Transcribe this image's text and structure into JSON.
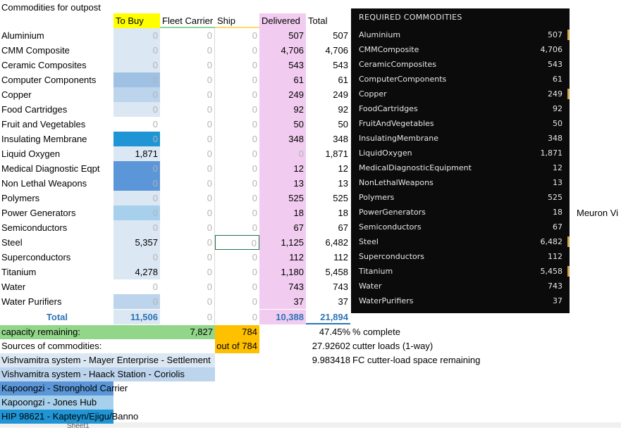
{
  "sheet": {
    "title": "Commodities for outpost",
    "headers": {
      "to_buy": "To Buy",
      "fleet_carrier": "Fleet Carrier",
      "ship": "Ship",
      "delivered": "Delivered",
      "total": "Total"
    },
    "rows": [
      {
        "name": "Aluminium",
        "to_buy": "0",
        "fc": "0",
        "ship": "0",
        "delivered": "507",
        "total": "507",
        "buy_color": "#dbe7f3"
      },
      {
        "name": "CMM Composite",
        "to_buy": "0",
        "fc": "0",
        "ship": "0",
        "delivered": "4,706",
        "total": "4,706",
        "buy_color": "#dbe7f3"
      },
      {
        "name": "Ceramic Composites",
        "to_buy": "0",
        "fc": "0",
        "ship": "0",
        "delivered": "543",
        "total": "543",
        "buy_color": "#dbe7f3"
      },
      {
        "name": "Computer Components",
        "to_buy": "0",
        "fc": "0",
        "ship": "0",
        "delivered": "61",
        "total": "61",
        "buy_color": "#9fc1e4"
      },
      {
        "name": "Copper",
        "to_buy": "0",
        "fc": "0",
        "ship": "0",
        "delivered": "249",
        "total": "249",
        "buy_color": "#bcd4ec"
      },
      {
        "name": "Food Cartridges",
        "to_buy": "0",
        "fc": "0",
        "ship": "0",
        "delivered": "92",
        "total": "92",
        "buy_color": "#dbe7f3"
      },
      {
        "name": "Fruit and Vegetables",
        "to_buy": "0",
        "fc": "0",
        "ship": "0",
        "delivered": "50",
        "total": "50",
        "buy_color": "#ffffff"
      },
      {
        "name": "Insulating Membrane",
        "to_buy": "0",
        "fc": "0",
        "ship": "0",
        "delivered": "348",
        "total": "348",
        "buy_color": "#1f95d6"
      },
      {
        "name": "Liquid Oxygen",
        "to_buy": "1,871",
        "fc": "0",
        "ship": "0",
        "delivered": "0",
        "total": "1,871",
        "buy_color": "#dbe7f3"
      },
      {
        "name": "Medical Diagnostic Eqpt",
        "to_buy": "0",
        "fc": "0",
        "ship": "0",
        "delivered": "12",
        "total": "12",
        "buy_color": "#5b96d8"
      },
      {
        "name": "Non Lethal Weapons",
        "to_buy": "0",
        "fc": "0",
        "ship": "0",
        "delivered": "13",
        "total": "13",
        "buy_color": "#5b96d8"
      },
      {
        "name": "Polymers",
        "to_buy": "0",
        "fc": "0",
        "ship": "0",
        "delivered": "525",
        "total": "525",
        "buy_color": "#dbe7f3"
      },
      {
        "name": "Power Generators",
        "to_buy": "0",
        "fc": "0",
        "ship": "0",
        "delivered": "18",
        "total": "18",
        "buy_color": "#a7d0ec"
      },
      {
        "name": "Semiconductors",
        "to_buy": "0",
        "fc": "0",
        "ship": "0",
        "delivered": "67",
        "total": "67",
        "buy_color": "#dbe7f3"
      },
      {
        "name": "Steel",
        "to_buy": "5,357",
        "fc": "0",
        "ship": "0",
        "delivered": "1,125",
        "total": "6,482",
        "buy_color": "#dbe7f3"
      },
      {
        "name": "Superconductors",
        "to_buy": "0",
        "fc": "0",
        "ship": "0",
        "delivered": "112",
        "total": "112",
        "buy_color": "#dbe7f3"
      },
      {
        "name": "Titanium",
        "to_buy": "4,278",
        "fc": "0",
        "ship": "0",
        "delivered": "1,180",
        "total": "5,458",
        "buy_color": "#dbe7f3"
      },
      {
        "name": "Water",
        "to_buy": "0",
        "fc": "0",
        "ship": "0",
        "delivered": "743",
        "total": "743",
        "buy_color": "#ffffff"
      },
      {
        "name": "Water Purifiers",
        "to_buy": "0",
        "fc": "0",
        "ship": "0",
        "delivered": "37",
        "total": "37",
        "buy_color": "#bcd4ec"
      }
    ],
    "totals": {
      "label": "Total",
      "to_buy": "11,506",
      "fc": "0",
      "ship": "0",
      "delivered": "10,388",
      "total": "21,894"
    },
    "capacity": {
      "label": "capacity remaining:",
      "value": "7,827",
      "ship_value": "784",
      "out_of": "out of 784"
    },
    "stats": [
      {
        "value": "47.45%",
        "label": "% complete"
      },
      {
        "value": "27.92602",
        "label": "cutter loads (1-way)"
      },
      {
        "value": "9.983418",
        "label": "FC cutter-load space remaining"
      }
    ],
    "sources_label": "Sources of commodities:",
    "sources": [
      {
        "text": "Vishvamitra system - Mayer Enterprise - Settlement",
        "color": "#dbe7f3"
      },
      {
        "text": "Vishvamitra system - Haack Station - Coriolis",
        "color": "#bcd4ec"
      },
      {
        "text": "Kapoongzi - Stronghold Carrier",
        "color": "#5b96d8"
      },
      {
        "text": "Kapoongzi - Jones Hub",
        "color": "#a7d0ec"
      },
      {
        "text": "HIP 98621 - Kapteyn/Ejigu/Banno",
        "color": "#1f95d6"
      }
    ],
    "side_text": "Meuron Vi",
    "sheet_tab": "Sheet1"
  },
  "panel": {
    "title": "REQUIRED COMMODITIES",
    "items": [
      {
        "name": "Aluminium",
        "value": "507",
        "bar": true
      },
      {
        "name": "CMMComposite",
        "value": "4,706",
        "bar": false
      },
      {
        "name": "CeramicComposites",
        "value": "543",
        "bar": false
      },
      {
        "name": "ComputerComponents",
        "value": "61",
        "bar": false
      },
      {
        "name": "Copper",
        "value": "249",
        "bar": true
      },
      {
        "name": "FoodCartridges",
        "value": "92",
        "bar": false
      },
      {
        "name": "FruitAndVegetables",
        "value": "50",
        "bar": false
      },
      {
        "name": "InsulatingMembrane",
        "value": "348",
        "bar": false
      },
      {
        "name": "LiquidOxygen",
        "value": "1,871",
        "bar": false
      },
      {
        "name": "MedicalDiagnosticEquipment",
        "value": "12",
        "bar": false
      },
      {
        "name": "NonLethalWeapons",
        "value": "13",
        "bar": false
      },
      {
        "name": "Polymers",
        "value": "525",
        "bar": false
      },
      {
        "name": "PowerGenerators",
        "value": "18",
        "bar": false
      },
      {
        "name": "Semiconductors",
        "value": "67",
        "bar": false
      },
      {
        "name": "Steel",
        "value": "6,482",
        "bar": true
      },
      {
        "name": "Superconductors",
        "value": "112",
        "bar": false
      },
      {
        "name": "Titanium",
        "value": "5,458",
        "bar": true
      },
      {
        "name": "Water",
        "value": "743",
        "bar": false
      },
      {
        "name": "WaterPurifiers",
        "value": "37",
        "bar": false
      }
    ]
  },
  "colors": {
    "header_yellow": "#ffff00",
    "delivered_pink": "#f2ccf0",
    "capacity_green": "#92d68a",
    "capacity_orange": "#ffc000",
    "total_blue": "#2e75b6",
    "panel_bg": "#0b0b0b",
    "panel_accent": "#d7a54a"
  }
}
